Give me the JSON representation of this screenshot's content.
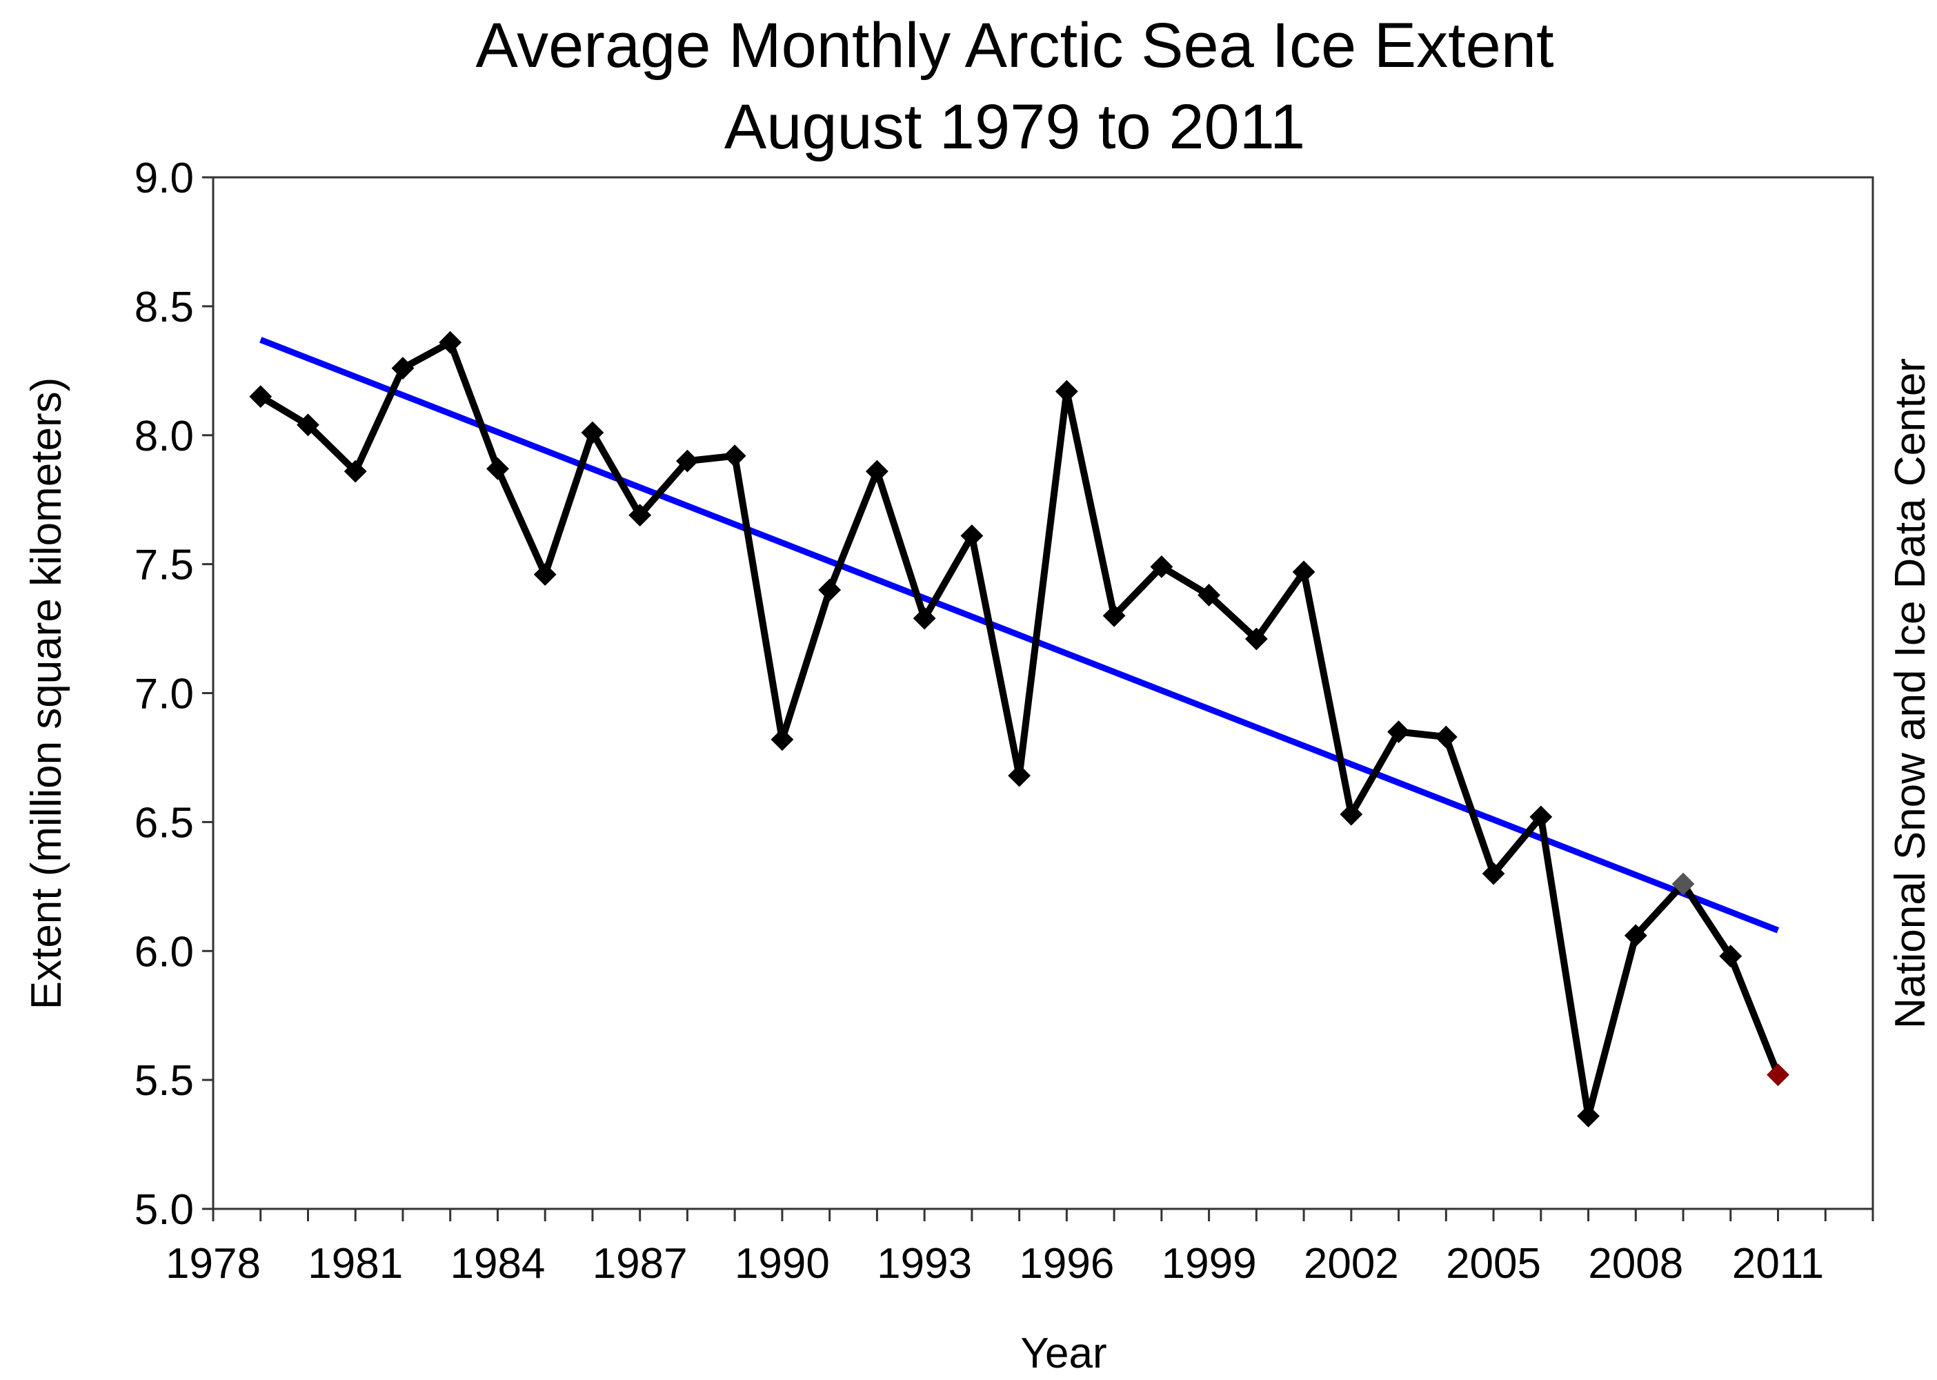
{
  "chart_data": {
    "type": "line",
    "title": "Average Monthly Arctic Sea Ice Extent",
    "subtitle": "August 1979 to 2011",
    "xlabel": "Year",
    "ylabel": "Extent (million square kilometers)",
    "right_label": "National Snow and Ice Data Center",
    "xlim": [
      1978,
      2013
    ],
    "ylim": [
      5.0,
      9.0
    ],
    "x_ticks": [
      "1978",
      "1981",
      "1984",
      "1987",
      "1990",
      "1993",
      "1996",
      "1999",
      "2002",
      "2005",
      "2008",
      "2011"
    ],
    "y_ticks": [
      "5.0",
      "5.5",
      "6.0",
      "6.5",
      "7.0",
      "7.5",
      "8.0",
      "8.5",
      "9.0"
    ],
    "grid": false,
    "legend": "none",
    "series": [
      {
        "color": "#000000",
        "marker": "diamond",
        "x": [
          1979,
          1980,
          1981,
          1982,
          1983,
          1984,
          1985,
          1986,
          1987,
          1988,
          1989,
          1990,
          1991,
          1992,
          1993,
          1994,
          1995,
          1996,
          1997,
          1998,
          1999,
          2000,
          2001,
          2002,
          2003,
          2004,
          2005,
          2006,
          2007,
          2008,
          2009,
          2010,
          2011
        ],
        "y": [
          8.15,
          8.04,
          7.86,
          8.26,
          8.36,
          7.87,
          7.46,
          8.01,
          7.69,
          7.9,
          7.92,
          6.82,
          7.4,
          7.86,
          7.29,
          7.61,
          6.68,
          8.17,
          7.3,
          7.49,
          7.38,
          7.21,
          7.47,
          6.53,
          6.85,
          6.83,
          6.3,
          6.52,
          5.36,
          6.06,
          6.26,
          5.98,
          5.52
        ],
        "highlight": [
          {
            "x": 2009,
            "color": "#555555"
          },
          {
            "x": 2011,
            "color": "#8b0000"
          }
        ]
      }
    ],
    "trend_line": {
      "color": "#0000ff",
      "x": [
        1979,
        2011
      ],
      "y": [
        8.37,
        6.08
      ]
    }
  }
}
